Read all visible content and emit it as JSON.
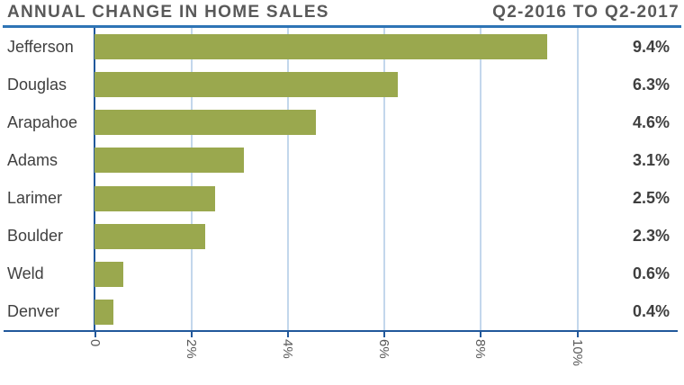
{
  "header": {
    "title": "ANNUAL CHANGE IN HOME SALES",
    "period": "Q2-2016 TO Q2-2017"
  },
  "chart_data": {
    "type": "bar",
    "orientation": "horizontal",
    "title": "ANNUAL CHANGE IN HOME SALES",
    "subtitle": "Q2-2016 TO Q2-2017",
    "categories": [
      "Jefferson",
      "Douglas",
      "Arapahoe",
      "Adams",
      "Larimer",
      "Boulder",
      "Weld",
      "Denver"
    ],
    "values": [
      9.4,
      6.3,
      4.6,
      3.1,
      2.5,
      2.3,
      0.6,
      0.4
    ],
    "value_labels": [
      "9.4%",
      "6.3%",
      "4.6%",
      "3.1%",
      "2.5%",
      "2.3%",
      "0.6%",
      "0.4%"
    ],
    "x_ticks": [
      {
        "value": 0,
        "label": "0"
      },
      {
        "value": 2,
        "label": "2%"
      },
      {
        "value": 4,
        "label": "4%"
      },
      {
        "value": 6,
        "label": "6%"
      },
      {
        "value": 8,
        "label": "8%"
      },
      {
        "value": 10,
        "label": "10%"
      }
    ],
    "xlim": [
      0,
      12.1
    ],
    "grid": true,
    "tick_label_rotation_deg": 90,
    "colors": {
      "bar": "#9aa84e",
      "axis": "#21589b",
      "gridline": "#c3d7ec",
      "title_rule": "#2e74b5",
      "title_text": "#595959",
      "category_text": "#404040",
      "value_text": "#3f3f3f"
    }
  }
}
